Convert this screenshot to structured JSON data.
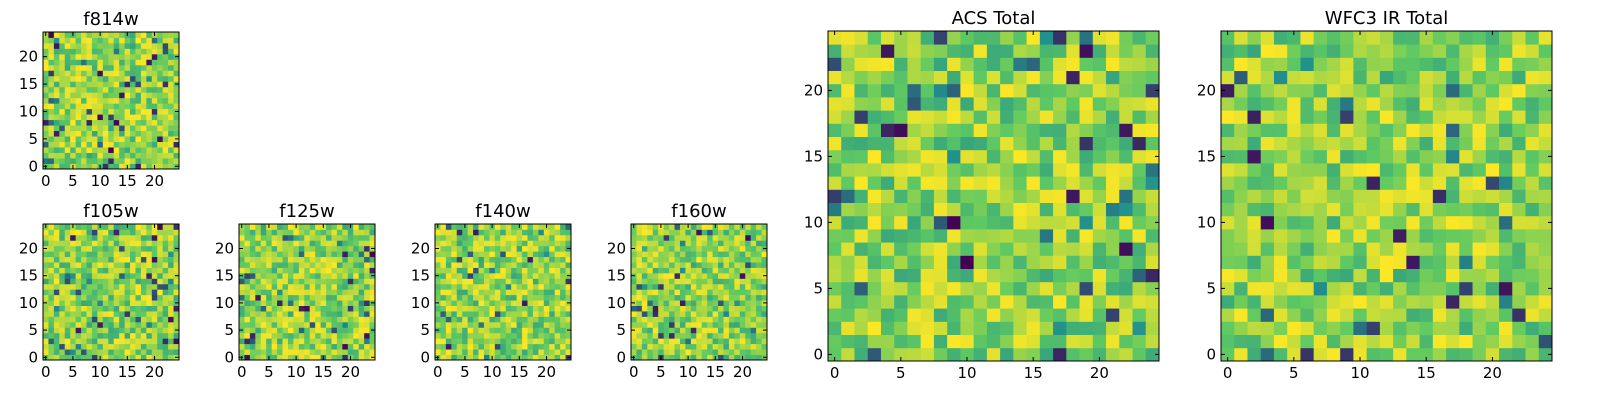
{
  "figure": {
    "colormap": "viridis",
    "colors": {
      "dark": "#440154",
      "teal": "#21918c",
      "green": "#5ec962",
      "yellow": "#fde725",
      "axis": "#000000",
      "background": "#ffffff"
    }
  },
  "chart_data": [
    {
      "id": "f814w",
      "type": "heatmap",
      "title": "f814w",
      "grid": [
        25,
        25
      ],
      "xlim": [
        -0.5,
        24.5
      ],
      "ylim": [
        -0.5,
        24.5
      ],
      "xticks": [
        0,
        5,
        10,
        15,
        20
      ],
      "xtick_labels": [
        "0",
        "5",
        "10",
        "15",
        "20"
      ],
      "yticks": [
        0,
        5,
        10,
        15,
        20
      ],
      "ytick_labels": [
        "0",
        "5",
        "10",
        "15",
        "20"
      ],
      "seed": 11
    },
    {
      "id": "f105w",
      "type": "heatmap",
      "title": "f105w",
      "grid": [
        25,
        25
      ],
      "xlim": [
        -0.5,
        24.5
      ],
      "ylim": [
        -0.5,
        24.5
      ],
      "xticks": [
        0,
        5,
        10,
        15,
        20
      ],
      "xtick_labels": [
        "0",
        "5",
        "10",
        "15",
        "20"
      ],
      "yticks": [
        0,
        5,
        10,
        15,
        20
      ],
      "ytick_labels": [
        "0",
        "5",
        "10",
        "15",
        "20"
      ],
      "seed": 23
    },
    {
      "id": "f125w",
      "type": "heatmap",
      "title": "f125w",
      "grid": [
        25,
        25
      ],
      "xlim": [
        -0.5,
        24.5
      ],
      "ylim": [
        -0.5,
        24.5
      ],
      "xticks": [
        0,
        5,
        10,
        15,
        20
      ],
      "xtick_labels": [
        "0",
        "5",
        "10",
        "15",
        "20"
      ],
      "yticks": [
        0,
        5,
        10,
        15,
        20
      ],
      "ytick_labels": [
        "0",
        "5",
        "10",
        "15",
        "20"
      ],
      "seed": 37
    },
    {
      "id": "f140w",
      "type": "heatmap",
      "title": "f140w",
      "grid": [
        25,
        25
      ],
      "xlim": [
        -0.5,
        24.5
      ],
      "ylim": [
        -0.5,
        24.5
      ],
      "xticks": [
        0,
        5,
        10,
        15,
        20
      ],
      "xtick_labels": [
        "0",
        "5",
        "10",
        "15",
        "20"
      ],
      "yticks": [
        0,
        5,
        10,
        15,
        20
      ],
      "ytick_labels": [
        "0",
        "5",
        "10",
        "15",
        "20"
      ],
      "seed": 41
    },
    {
      "id": "f160w",
      "type": "heatmap",
      "title": "f160w",
      "grid": [
        25,
        25
      ],
      "xlim": [
        -0.5,
        24.5
      ],
      "ylim": [
        -0.5,
        24.5
      ],
      "xticks": [
        0,
        5,
        10,
        15,
        20
      ],
      "xtick_labels": [
        "0",
        "5",
        "10",
        "15",
        "20"
      ],
      "yticks": [
        0,
        5,
        10,
        15,
        20
      ],
      "ytick_labels": [
        "0",
        "5",
        "10",
        "15",
        "20"
      ],
      "seed": 53
    },
    {
      "id": "acs-total",
      "type": "heatmap",
      "title": "ACS Total",
      "grid": [
        25,
        25
      ],
      "xlim": [
        -0.5,
        24.5
      ],
      "ylim": [
        -0.5,
        24.5
      ],
      "xticks": [
        0,
        5,
        10,
        15,
        20
      ],
      "xtick_labels": [
        "0",
        "5",
        "10",
        "15",
        "20"
      ],
      "yticks": [
        0,
        5,
        10,
        15,
        20
      ],
      "ytick_labels": [
        "0",
        "5",
        "10",
        "15",
        "20"
      ],
      "seed": 67
    },
    {
      "id": "wfc3-ir-total",
      "type": "heatmap",
      "title": "WFC3 IR Total",
      "grid": [
        25,
        25
      ],
      "xlim": [
        -0.5,
        24.5
      ],
      "ylim": [
        -0.5,
        24.5
      ],
      "xticks": [
        0,
        5,
        10,
        15,
        20
      ],
      "xtick_labels": [
        "0",
        "5",
        "10",
        "15",
        "20"
      ],
      "yticks": [
        0,
        5,
        10,
        15,
        20
      ],
      "ytick_labels": [
        "0",
        "5",
        "10",
        "15",
        "20"
      ],
      "seed": 79
    }
  ]
}
